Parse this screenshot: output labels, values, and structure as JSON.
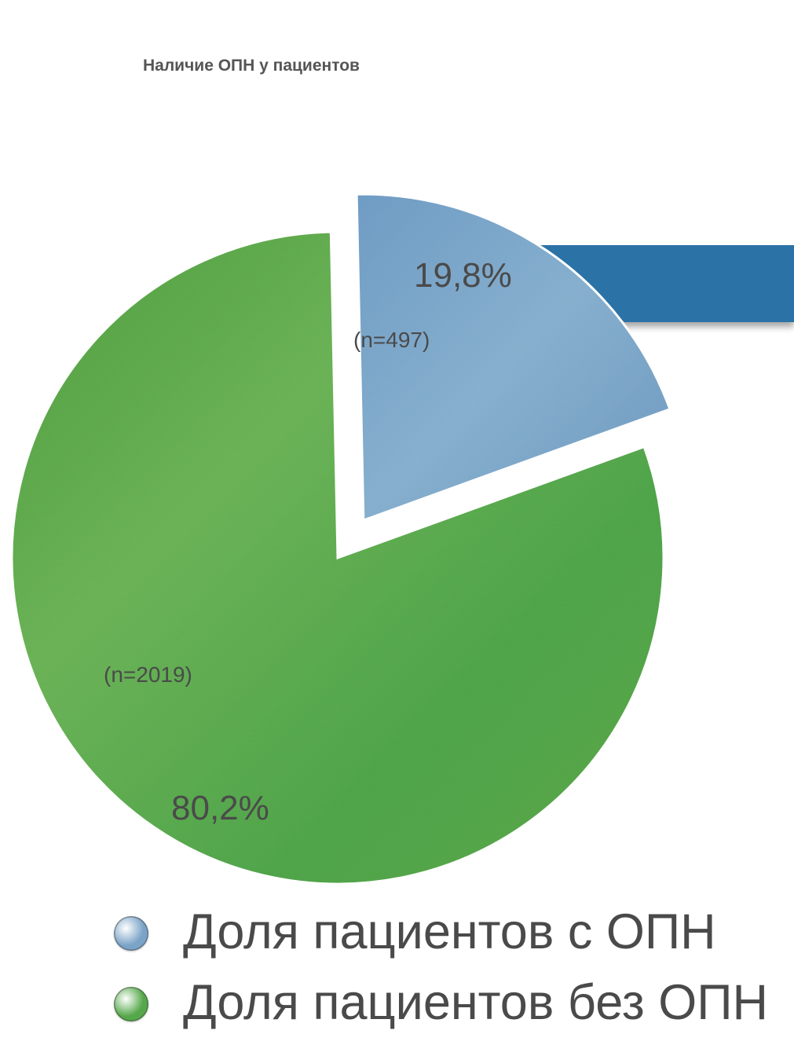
{
  "chart_data": {
    "type": "pie",
    "title": "Наличие ОПН у пациентов",
    "slices": [
      {
        "name": "Доля пациентов с ОПН",
        "value": 19.8,
        "percent_label": "19,8%",
        "n_label": "(n=497)",
        "color": "#7aa3c7",
        "exploded": true
      },
      {
        "name": "Доля пациентов без ОПН",
        "value": 80.2,
        "percent_label": "80,2%",
        "n_label": "(n=2019)",
        "color": "#55a84a",
        "exploded": false
      }
    ],
    "legend_position": "bottom",
    "legend": [
      {
        "label": "Доля пациентов с ОПН",
        "color": "#7aa3c7"
      },
      {
        "label": "Доля пациентов без ОПН",
        "color": "#55a84a"
      }
    ],
    "callout_color": "#2b72a6"
  }
}
